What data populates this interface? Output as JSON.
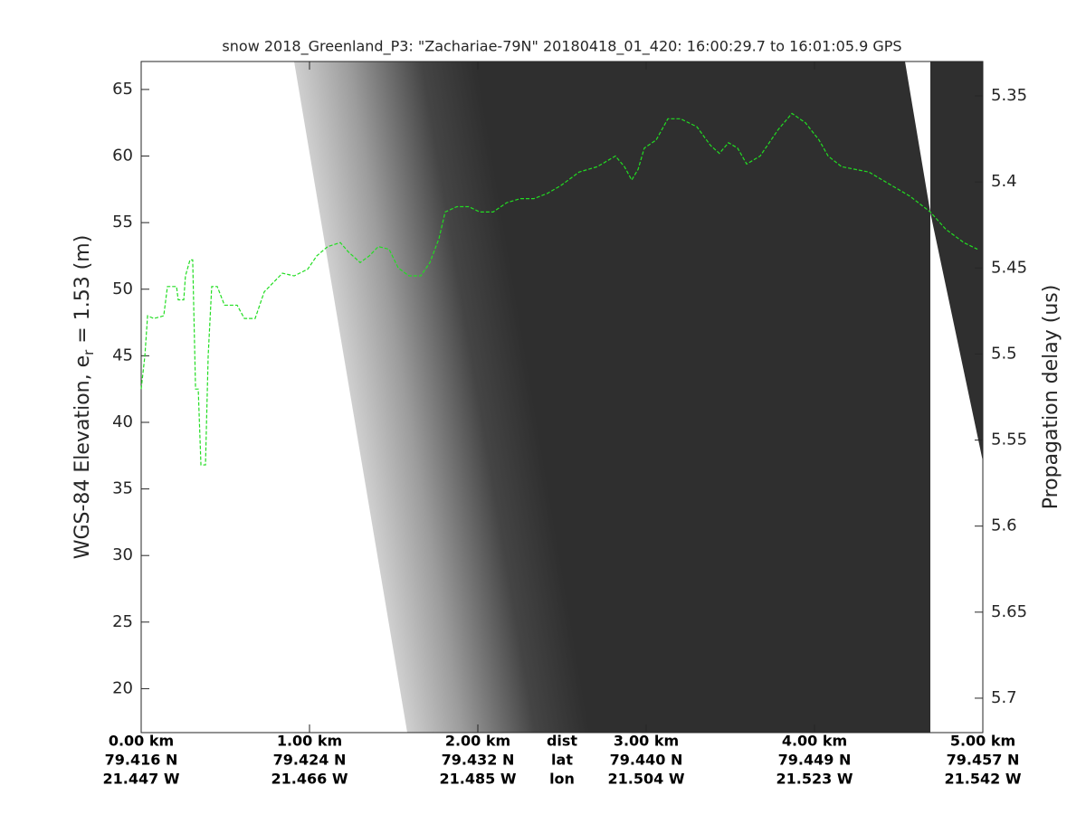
{
  "chart_data": {
    "type": "line",
    "title": "snow 2018_Greenland_P3: \"Zachariae-79N\"  20180418_01_420: 16:00:29.7 to 16:01:05.9 GPS",
    "ylabel": [
      "WGS-84 Elevation, e",
      "r",
      " = 1.53 (m)"
    ],
    "y2label": "Propagation delay (us)",
    "row_labels": [
      "dist",
      "lat",
      "lon"
    ],
    "xlim": [
      0,
      5
    ],
    "xticks": [
      {
        "value": 0,
        "label": "0.00 km"
      },
      {
        "value": 1,
        "label": "1.00 km"
      },
      {
        "value": 2,
        "label": "2.00 km"
      },
      {
        "value": 3,
        "label": "3.00 km"
      },
      {
        "value": 4,
        "label": "4.00 km"
      },
      {
        "value": 5,
        "label": "5.00 km"
      }
    ],
    "lat_labels": [
      "79.416 N",
      "79.424 N",
      "79.432 N",
      "79.440 N",
      "79.449 N",
      "79.457 N"
    ],
    "lon_labels": [
      "21.447 W",
      "21.466 W",
      "21.485 W",
      "21.504 W",
      "21.523 W",
      "21.542 W"
    ],
    "ylim": [
      16.7,
      67.1
    ],
    "yticks": [
      20,
      25,
      30,
      35,
      40,
      45,
      50,
      55,
      60,
      65
    ],
    "y2lim": [
      5.72,
      5.33
    ],
    "y2ticks": [
      5.35,
      5.4,
      5.45,
      5.5,
      5.55,
      5.6,
      5.65,
      5.7
    ],
    "x": [
      0,
      0.022,
      0.038,
      0.075,
      0.134,
      0.156,
      0.21,
      0.22,
      0.253,
      0.263,
      0.29,
      0.306,
      0.323,
      0.339,
      0.355,
      0.382,
      0.398,
      0.419,
      0.452,
      0.495,
      0.57,
      0.613,
      0.677,
      0.731,
      0.785,
      0.839,
      0.909,
      0.989,
      1.043,
      1.108,
      1.183,
      1.231,
      1.301,
      1.355,
      1.409,
      1.473,
      1.527,
      1.591,
      1.661,
      1.715,
      1.769,
      1.806,
      1.876,
      1.946,
      2.011,
      2.091,
      2.172,
      2.253,
      2.333,
      2.414,
      2.495,
      2.602,
      2.71,
      2.817,
      2.871,
      2.914,
      2.952,
      2.989,
      3.059,
      3.129,
      3.204,
      3.301,
      3.382,
      3.435,
      3.489,
      3.543,
      3.597,
      3.677,
      3.785,
      3.866,
      3.946,
      4.027,
      4.081,
      4.161,
      4.323,
      4.457,
      4.565,
      4.688,
      4.78,
      4.887,
      4.968
    ],
    "series": [
      {
        "color": "#22dd22",
        "values": [
          42.5,
          45,
          48,
          47.8,
          48,
          50.2,
          50.2,
          49.2,
          49.2,
          51,
          52.2,
          52.2,
          42.5,
          42.5,
          36.8,
          36.8,
          45,
          50.2,
          50.2,
          48.8,
          48.8,
          47.8,
          47.8,
          49.8,
          50.5,
          51.2,
          51,
          51.5,
          52.5,
          53.2,
          53.5,
          52.8,
          52,
          52.5,
          53.2,
          53,
          51.6,
          51,
          51,
          52,
          53.8,
          55.8,
          56.2,
          56.2,
          55.8,
          55.8,
          56.5,
          56.8,
          56.8,
          57.2,
          57.8,
          58.8,
          59.2,
          60,
          59.2,
          58.2,
          59,
          60.6,
          61.2,
          62.8,
          62.8,
          62.2,
          60.8,
          60.2,
          61,
          60.6,
          59.4,
          60,
          62,
          63.2,
          62.5,
          61.2,
          60,
          59.2,
          58.8,
          57.8,
          57,
          55.8,
          54.5,
          53.5,
          53
        ]
      }
    ]
  }
}
